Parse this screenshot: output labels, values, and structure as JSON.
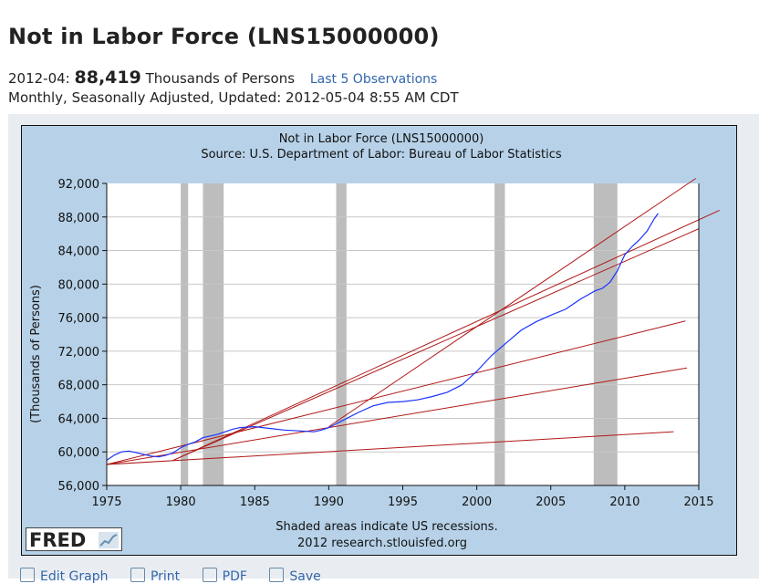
{
  "header": {
    "title": "Not in Labor Force (LNS15000000)",
    "obs_date": "2012-04:",
    "obs_value": "88,419",
    "obs_units": "Thousands of Persons",
    "last_obs_link": "Last 5 Observations",
    "meta": "Monthly, Seasonally Adjusted, Updated: 2012-05-04 8:55 AM CDT"
  },
  "toolbar": {
    "items": [
      "Edit Graph",
      "Print",
      "PDF",
      "Save"
    ]
  },
  "logo": {
    "text": "FRED"
  },
  "chart_data": {
    "type": "line",
    "title": "Not in Labor Force (LNS15000000)",
    "subtitle": "Source: U.S. Department of Labor: Bureau of Labor Statistics",
    "ylabel": "(Thousands of Persons)",
    "xlabel": "",
    "footnote": "Shaded areas indicate US recessions.",
    "credit": "2012 research.stlouisfed.org",
    "xlim": [
      1975,
      2015
    ],
    "ylim": [
      56000,
      92000
    ],
    "x_ticks": [
      "1975",
      "1980",
      "1985",
      "1990",
      "1995",
      "2000",
      "2005",
      "2010",
      "2015"
    ],
    "y_ticks": [
      "56,000",
      "60,000",
      "64,000",
      "68,000",
      "72,000",
      "76,000",
      "80,000",
      "84,000",
      "88,000",
      "92,000"
    ],
    "grid": true,
    "series_color": "#1a33ff",
    "trend_color": "#b01818",
    "recessions": [
      [
        1980.0,
        1980.5
      ],
      [
        1981.5,
        1982.9
      ],
      [
        1990.5,
        1991.2
      ],
      [
        2001.2,
        2001.9
      ],
      [
        2007.9,
        2009.5
      ]
    ],
    "series": [
      {
        "x": [
          1975.0,
          1975.5,
          1976.0,
          1976.5,
          1977.0,
          1977.5,
          1978.0,
          1978.5,
          1979.0,
          1979.5,
          1980.0,
          1980.5,
          1981.0,
          1981.5,
          1982.0,
          1982.5,
          1983.0,
          1983.5,
          1984.0,
          1985.0,
          1986.0,
          1987.0,
          1988.0,
          1989.0,
          1989.5,
          1990.0,
          1991.0,
          1992.0,
          1993.0,
          1994.0,
          1995.0,
          1996.0,
          1997.0,
          1998.0,
          1999.0,
          2000.0,
          2001.0,
          2002.0,
          2003.0,
          2004.0,
          2005.0,
          2006.0,
          2007.0,
          2008.0,
          2008.5,
          2009.0,
          2009.5,
          2010.0,
          2010.5,
          2011.0,
          2011.5,
          2012.0,
          2012.25
        ],
        "y": [
          59000,
          59600,
          60000,
          60100,
          59900,
          59700,
          59500,
          59400,
          59600,
          59900,
          60500,
          60900,
          61200,
          61700,
          61900,
          62100,
          62400,
          62700,
          62900,
          63000,
          62800,
          62600,
          62500,
          62400,
          62600,
          62900,
          63800,
          64700,
          65500,
          65900,
          66000,
          66200,
          66600,
          67100,
          68000,
          69600,
          71500,
          73000,
          74500,
          75500,
          76300,
          77000,
          78200,
          79200,
          79500,
          80200,
          81600,
          83500,
          84500,
          85300,
          86300,
          87800,
          88419
        ]
      }
    ],
    "trend_lines": [
      {
        "x": [
          1975.0,
          2013.3
        ],
        "y": [
          58500,
          62400
        ]
      },
      {
        "x": [
          1975.0,
          2014.2
        ],
        "y": [
          58500,
          70000
        ]
      },
      {
        "x": [
          1975.0,
          2014.1
        ],
        "y": [
          58500,
          75600
        ]
      },
      {
        "x": [
          1979.5,
          2015.0
        ],
        "y": [
          59000,
          86600
        ]
      },
      {
        "x": [
          1979.5,
          2016.4
        ],
        "y": [
          59000,
          88800
        ]
      },
      {
        "x": [
          1990.0,
          2014.8
        ],
        "y": [
          63000,
          92600
        ]
      }
    ]
  }
}
